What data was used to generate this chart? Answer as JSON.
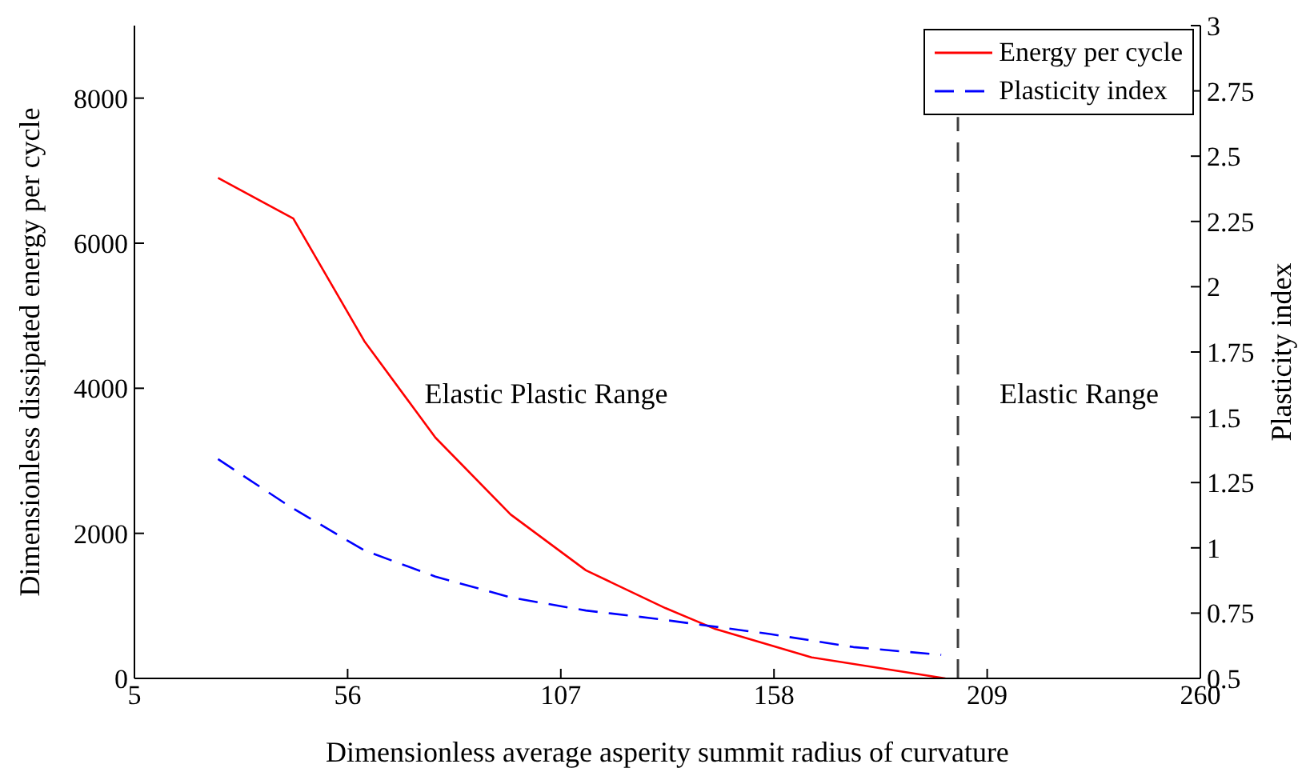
{
  "chart_data": {
    "type": "line",
    "xlabel": "Dimensionless average asperity summit radius of curvature",
    "ylabel": "Dimensionless dissipated energy per cycle",
    "y2label": "Plasticity index",
    "series": [
      {
        "name": "Energy per cycle",
        "color": "#ff0000",
        "line_style": "solid",
        "x": [
          25,
          43,
          60,
          77,
          95,
          113,
          132,
          144,
          167,
          199
        ],
        "values": [
          6900,
          6340,
          4650,
          3320,
          2260,
          1490,
          970,
          680,
          290,
          0
        ]
      },
      {
        "name": "Plasticity index",
        "color": "#0000ff",
        "line_style": "dashed",
        "axis": "y2",
        "x": [
          25,
          42,
          60,
          77,
          95,
          113,
          129,
          157,
          177,
          198
        ],
        "values": [
          1.34,
          1.16,
          0.99,
          0.89,
          0.81,
          0.76,
          0.73,
          0.67,
          0.62,
          0.59
        ]
      }
    ],
    "xlim": [
      5,
      260
    ],
    "xticks": [
      5,
      56,
      107,
      158,
      209,
      260
    ],
    "ylim": [
      0,
      9000
    ],
    "yticks": [
      0,
      2000,
      4000,
      6000,
      8000
    ],
    "y2lim": [
      0.5,
      3
    ],
    "y2ticks": [
      0.5,
      0.75,
      1,
      1.25,
      1.5,
      1.75,
      2,
      2.25,
      2.5,
      2.75,
      3
    ],
    "ref_lines": [
      {
        "axis": "x",
        "value": 202,
        "color": "#404040",
        "line_style": "dashed"
      }
    ],
    "annotations": [
      "Elastic Plastic Range",
      "Elastic Range"
    ],
    "legend": "top right",
    "marker": "none",
    "grid": false
  }
}
